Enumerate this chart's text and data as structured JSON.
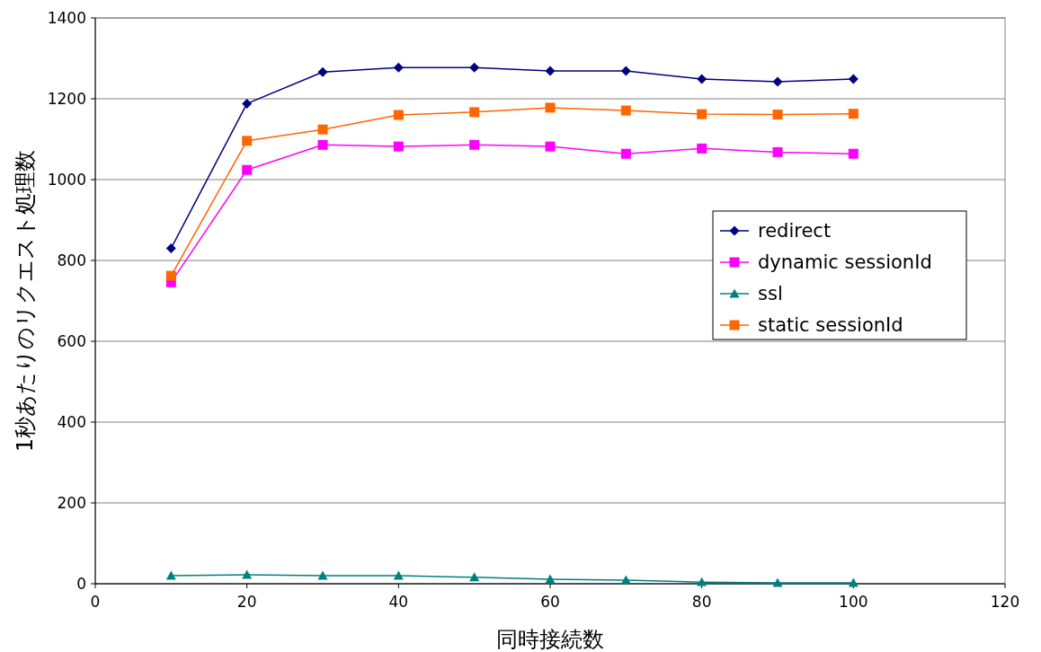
{
  "chart_data": {
    "type": "line",
    "xlabel": "同時接続数",
    "ylabel": "1秒あたりのリクエスト処理数",
    "x": [
      10,
      20,
      30,
      40,
      50,
      60,
      70,
      80,
      90,
      100
    ],
    "series": [
      {
        "name": "redirect",
        "color": "#000080",
        "marker": "diamond",
        "values": [
          830,
          1188,
          1266,
          1277,
          1277,
          1269,
          1269,
          1249,
          1242,
          1249
        ]
      },
      {
        "name": "dynamic sessionId",
        "color": "#ff00ff",
        "marker": "square",
        "values": [
          746,
          1024,
          1086,
          1082,
          1086,
          1082,
          1064,
          1077,
          1068,
          1064
        ]
      },
      {
        "name": "ssl",
        "color": "#008080",
        "marker": "triangle",
        "values": [
          20,
          22,
          20,
          20,
          16,
          11,
          9,
          4,
          2,
          2
        ]
      },
      {
        "name": "static sessionId",
        "color": "#ff6600",
        "marker": "square",
        "values": [
          762,
          1096,
          1124,
          1160,
          1167,
          1178,
          1171,
          1162,
          1161,
          1163
        ]
      }
    ],
    "xlim": [
      0,
      120
    ],
    "xticks": [
      0,
      20,
      40,
      60,
      80,
      100,
      120
    ],
    "ylim": [
      0,
      1400
    ],
    "yticks": [
      0,
      200,
      400,
      600,
      800,
      1000,
      1200,
      1400
    ],
    "grid": "y",
    "legend": "right"
  }
}
